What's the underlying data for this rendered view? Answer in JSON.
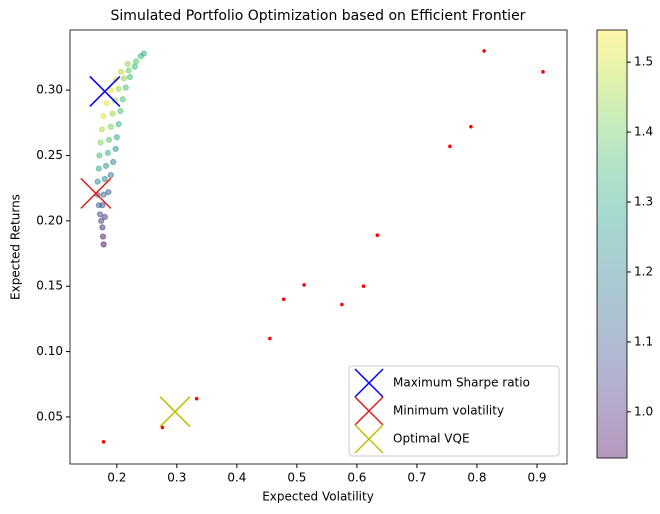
{
  "chart_data": {
    "type": "scatter",
    "title": "Simulated Portfolio Optimization based on Efficient Frontier",
    "x_label": "Expected Volatility",
    "y_label": "Expected Returns",
    "xlim": [
      0.122,
      0.95
    ],
    "ylim": [
      0.014,
      0.346
    ],
    "xticks": [
      0.2,
      0.3,
      0.4,
      0.5,
      0.6,
      0.7,
      0.8,
      0.9
    ],
    "yticks": [
      0.05,
      {
        "value": 0.1,
        "label": "0.10"
      },
      0.15,
      {
        "value": 0.2,
        "label": "0.20"
      },
      0.25,
      {
        "value": 0.3,
        "label": "0.30"
      }
    ],
    "colormap": "viridis",
    "clim": [
      0.934,
      1.546
    ],
    "cticks": [
      {
        "value": 1,
        "label": "1.0"
      },
      1.1,
      1.2,
      1.3,
      1.4,
      1.5
    ],
    "legend": "lower right",
    "series": [
      {
        "kind": "colored",
        "x": [
          0.178,
          0.177,
          0.176,
          0.174,
          0.172,
          0.18,
          0.17,
          0.176,
          0.168,
          0.178,
          0.186,
          0.168,
          0.18,
          0.19,
          0.17,
          0.182,
          0.194,
          0.171,
          0.185,
          0.198,
          0.173,
          0.187,
          0.2,
          0.175,
          0.19,
          0.203,
          0.178,
          0.193,
          0.206,
          0.183,
          0.197,
          0.21,
          0.19,
          0.203,
          0.215,
          0.198,
          0.212,
          0.222,
          0.207,
          0.22,
          0.23,
          0.218,
          0.232,
          0.24,
          0.245
        ],
        "values": [
          0.182,
          0.188,
          0.195,
          0.2,
          0.205,
          0.203,
          0.212,
          0.212,
          0.22,
          0.22,
          0.222,
          0.23,
          0.232,
          0.235,
          0.24,
          0.242,
          0.245,
          0.25,
          0.252,
          0.255,
          0.26,
          0.262,
          0.264,
          0.27,
          0.272,
          0.274,
          0.28,
          0.282,
          0.284,
          0.29,
          0.292,
          0.293,
          0.3,
          0.301,
          0.302,
          0.308,
          0.309,
          0.31,
          0.314,
          0.315,
          0.318,
          0.32,
          0.322,
          0.326,
          0.328
        ],
        "c": [
          0.95,
          0.97,
          1.0,
          1.03,
          1.06,
          1.02,
          1.1,
          1.08,
          1.15,
          1.12,
          1.1,
          1.22,
          1.2,
          1.16,
          1.3,
          1.26,
          1.2,
          1.36,
          1.32,
          1.25,
          1.42,
          1.38,
          1.3,
          1.47,
          1.42,
          1.33,
          1.51,
          1.45,
          1.36,
          1.53,
          1.46,
          1.36,
          1.53,
          1.45,
          1.36,
          1.52,
          1.43,
          1.35,
          1.48,
          1.4,
          1.34,
          1.44,
          1.37,
          1.33,
          1.32
        ]
      },
      {
        "kind": "dots",
        "color": "#ff0000",
        "x": [
          0.178,
          0.276,
          0.333,
          0.455,
          0.478,
          0.512,
          0.575,
          0.611,
          0.634,
          0.755,
          0.79,
          0.812,
          0.91
        ],
        "values": [
          0.031,
          0.042,
          0.064,
          0.11,
          0.14,
          0.151,
          0.136,
          0.15,
          0.189,
          0.257,
          0.272,
          0.33,
          0.314
        ]
      },
      {
        "kind": "cross",
        "name": "Maximum Sharpe ratio",
        "color": "#0000ff",
        "x": [
          0.18
        ],
        "values": [
          0.299
        ]
      },
      {
        "kind": "cross",
        "name": "Minimum volatility",
        "color": "#e31a1c",
        "x": [
          0.165
        ],
        "values": [
          0.221
        ]
      },
      {
        "kind": "cross",
        "name": "Optimal VQE",
        "color": "#bfbf00",
        "x": [
          0.297
        ],
        "values": [
          0.054
        ]
      }
    ]
  }
}
